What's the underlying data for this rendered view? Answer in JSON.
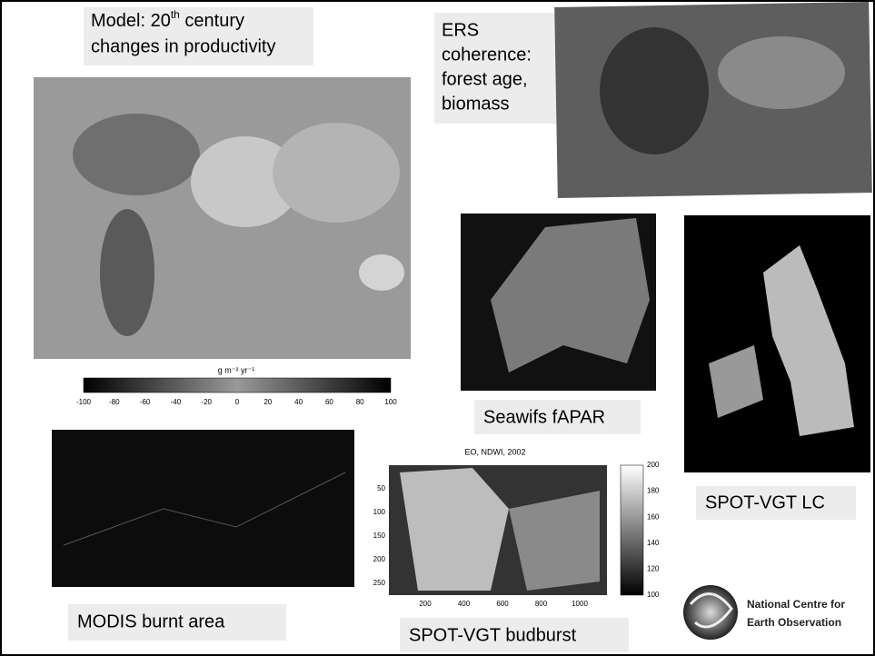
{
  "model": {
    "line1_pre": "Model: 20",
    "sup": "th",
    "line1_post": " century",
    "line2": "changes in productivity",
    "unit": "g m⁻² yr⁻¹",
    "colorbar_ticks": [
      -100,
      -80,
      -60,
      -40,
      -20,
      0,
      20,
      40,
      60,
      80,
      100
    ]
  },
  "ers": {
    "lines": [
      "ERS",
      "coherence:",
      "forest age,",
      "biomass"
    ]
  },
  "seawifs": {
    "label": "Seawifs fAPAR"
  },
  "spot_lc": {
    "label": "SPOT-VGT LC"
  },
  "modis": {
    "label": "MODIS  burnt  area"
  },
  "budburst": {
    "title": "EO, NDWI, 2002",
    "label": "SPOT-VGT budburst",
    "yticks": [
      50,
      100,
      150,
      200,
      250
    ],
    "xticks": [
      200,
      400,
      600,
      800,
      1000
    ],
    "colorbar_ticks": [
      200,
      180,
      160,
      140,
      120,
      100
    ]
  },
  "logo": {
    "lines": [
      "National Centre for",
      "Earth Observation"
    ]
  }
}
